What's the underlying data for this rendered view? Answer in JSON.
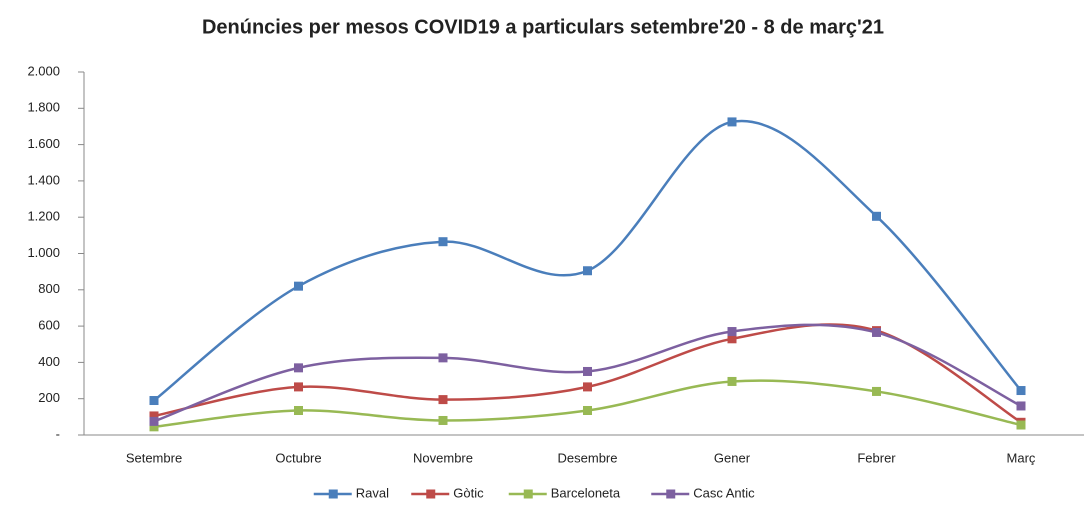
{
  "chart_data": {
    "type": "line",
    "title": "Denúncies per mesos COVID19 a particulars setembre'20 - 8 de març'21",
    "categories": [
      "Setembre",
      "Octubre",
      "Novembre",
      "Desembre",
      "Gener",
      "Febrer",
      "Març"
    ],
    "series": [
      {
        "name": "Raval",
        "color": "#4a7ebb",
        "values": [
          190,
          820,
          1065,
          905,
          1725,
          1205,
          245
        ]
      },
      {
        "name": "Gòtic",
        "color": "#be4b48",
        "values": [
          105,
          265,
          195,
          265,
          530,
          575,
          70
        ]
      },
      {
        "name": "Barceloneta",
        "color": "#98b954",
        "values": [
          45,
          135,
          80,
          135,
          295,
          240,
          55
        ]
      },
      {
        "name": "Casc Antic",
        "color": "#7d60a0",
        "values": [
          75,
          370,
          425,
          350,
          570,
          565,
          160
        ]
      }
    ],
    "ylim": [
      0,
      2000
    ],
    "yticks": [
      {
        "value": 0,
        "label": "-"
      },
      200,
      400,
      600,
      800,
      {
        "value": 1000,
        "label": "1.000"
      },
      {
        "value": 1200,
        "label": "1.200"
      },
      {
        "value": 1400,
        "label": "1.400"
      },
      {
        "value": 1600,
        "label": "1.600"
      },
      {
        "value": 1800,
        "label": "1.800"
      },
      {
        "value": 2000,
        "label": "2.000"
      }
    ],
    "smooth": true,
    "legend": "bottom"
  }
}
